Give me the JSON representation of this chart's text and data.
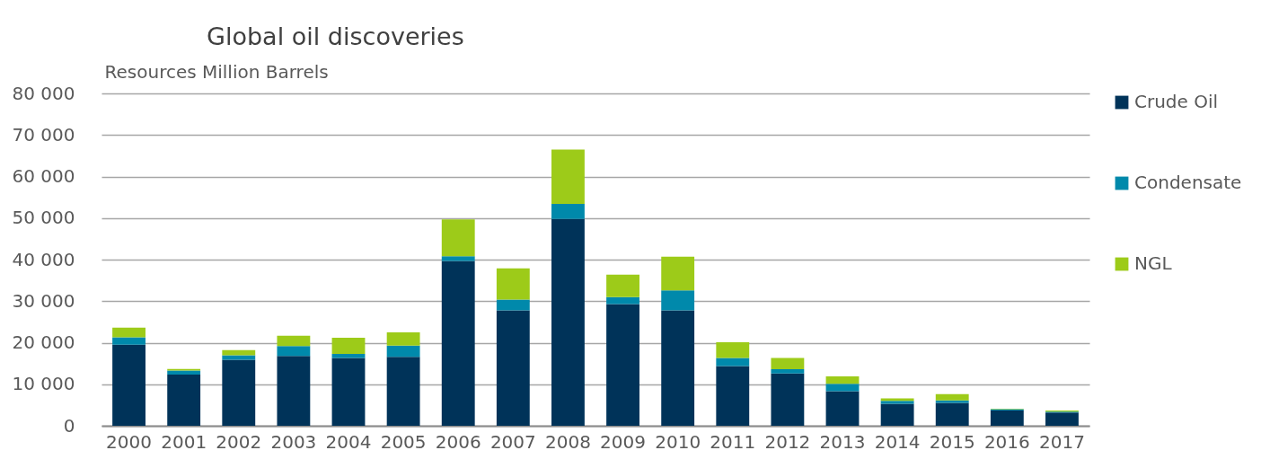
{
  "chart_data": {
    "type": "bar",
    "title": "Global oil discoveries",
    "ylabel": "Resources Million Barrels",
    "categories": [
      "2000",
      "2001",
      "2002",
      "2003",
      "2004",
      "2005",
      "2006",
      "2007",
      "2008",
      "2009",
      "2010",
      "2011",
      "2012",
      "2013",
      "2014",
      "2015",
      "2016",
      "2017"
    ],
    "stacked": true,
    "series": [
      {
        "name": "Crude Oil",
        "color": "#003359",
        "values": [
          19500,
          12300,
          15900,
          16800,
          16300,
          16600,
          39700,
          27800,
          49800,
          29300,
          27800,
          14400,
          12600,
          8300,
          5300,
          5500,
          3700,
          3200
        ]
      },
      {
        "name": "Condensate",
        "color": "#0089ab",
        "values": [
          1800,
          1000,
          1100,
          2400,
          1000,
          2700,
          1100,
          2600,
          3600,
          1700,
          4800,
          1900,
          1000,
          1800,
          700,
          600,
          300,
          200
        ]
      },
      {
        "name": "NGL",
        "color": "#9dcb19",
        "values": [
          2300,
          400,
          1200,
          2500,
          3900,
          3200,
          8900,
          7500,
          13100,
          5400,
          8100,
          3800,
          2700,
          1800,
          600,
          1500,
          100,
          300
        ]
      }
    ],
    "ylim": [
      0,
      80000
    ],
    "yticks": [
      0,
      {
        "value": 10000,
        "label": "10 000"
      },
      {
        "value": 20000,
        "label": "20 000"
      },
      {
        "value": 30000,
        "label": "30 000"
      },
      {
        "value": 40000,
        "label": "40 000"
      },
      {
        "value": 50000,
        "label": "50 000"
      },
      {
        "value": 60000,
        "label": "60 000"
      },
      {
        "value": 70000,
        "label": "70 000"
      },
      {
        "value": 80000,
        "label": "80 000"
      }
    ],
    "grid": "y",
    "legend": "right"
  }
}
